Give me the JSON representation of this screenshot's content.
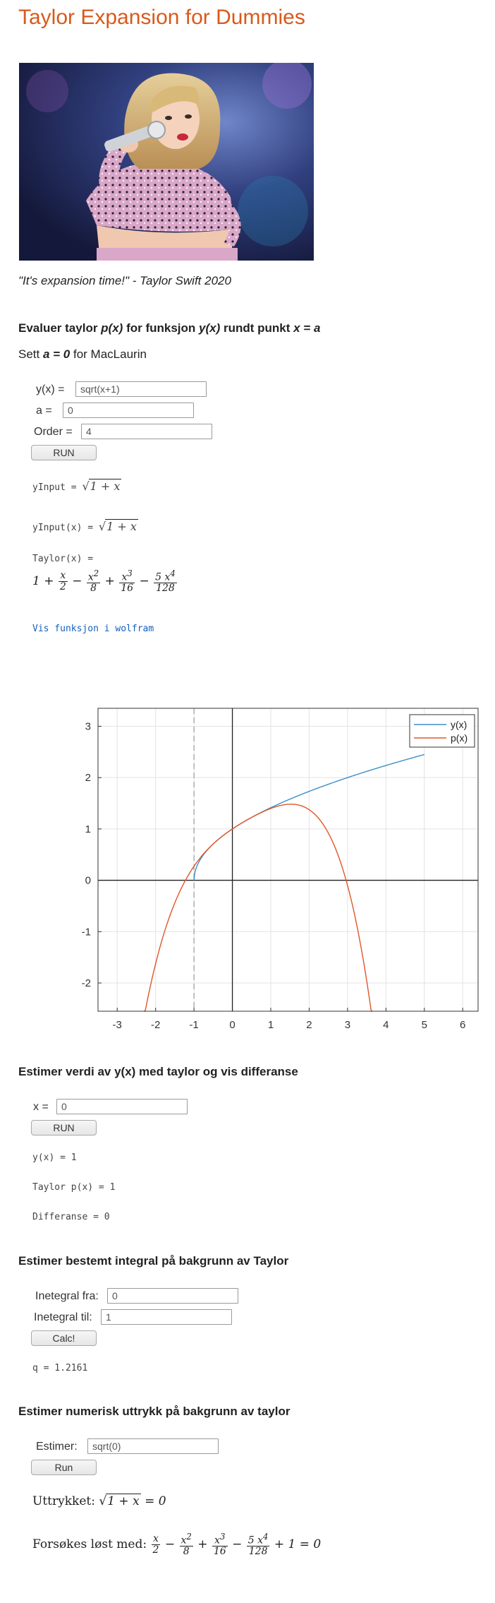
{
  "page": {
    "title": "Taylor Expansion for Dummies",
    "caption": "\"It's expansion time!\" - Taylor Swift 2020"
  },
  "section1": {
    "heading_parts": [
      "Evaluer taylor ",
      "p(x)",
      " for funksjon ",
      "y(x)",
      " rundt punkt ",
      "x = a"
    ],
    "subtext_parts": [
      "Sett ",
      "a = 0",
      " for MacLaurin"
    ],
    "y_label": "y(x) =",
    "y_value": "sqrt(x+1)",
    "a_label": "a =",
    "a_value": "0",
    "order_label": "Order =",
    "order_value": "4",
    "run_label": "RUN",
    "yinput_label": "yInput = ",
    "yinputx_label": "yInput(x) = ",
    "sqrt_content": "1 + x",
    "taylor_label": "Taylor(x) =",
    "wolfram_link": "Vis funksjon i wolfram"
  },
  "chart_data": {
    "type": "line",
    "x_ticks": [
      "-3",
      "-2",
      "-1",
      "0",
      "1",
      "2",
      "3",
      "4",
      "5",
      "6"
    ],
    "y_ticks": [
      "3",
      "2",
      "1",
      "0",
      "-1",
      "-2"
    ],
    "xlim": [
      -3.5,
      6.4
    ],
    "ylim": [
      -2.55,
      3.35
    ],
    "grid": true,
    "legend_position": "top-right",
    "vertical_dashed_line_x": -1,
    "series": [
      {
        "name": "y(x)",
        "color": "#3a8fc8",
        "function": "sqrt(1+x)",
        "x_range": [
          -1,
          5
        ]
      },
      {
        "name": "p(x)",
        "color": "#e0562a",
        "function": "1 + x/2 - x^2/8 + x^3/16 - 5x^4/128",
        "x_range": [
          -2.3,
          3.65
        ]
      }
    ]
  },
  "section2": {
    "heading": "Estimer verdi av y(x) med taylor og vis differanse",
    "x_label": "x =",
    "x_value": "0",
    "run_label": "RUN",
    "y_result": "y(x) = 1",
    "taylor_result": "Taylor p(x) = 1",
    "diff_result": "Differanse = 0"
  },
  "section3": {
    "heading": "Estimer bestemt integral på bakgrunn av Taylor",
    "from_label": "Inetegral fra:",
    "from_value": "0",
    "to_label": "Inetegral til:",
    "to_value": "1",
    "calc_label": "Calc!",
    "q_result": "q = 1.2161"
  },
  "section4": {
    "heading": "Estimer numerisk uttrykk på bakgrunn av taylor",
    "est_label": "Estimer:",
    "est_value": "sqrt(0)",
    "run_label": "Run",
    "expr_label": "Uttrykket: ",
    "solve_label": "Forsøkes løst med: "
  },
  "colors": {
    "title": "#d9591a",
    "link": "#1560bd",
    "series_y": "#3a8fc8",
    "series_p": "#e0562a"
  }
}
